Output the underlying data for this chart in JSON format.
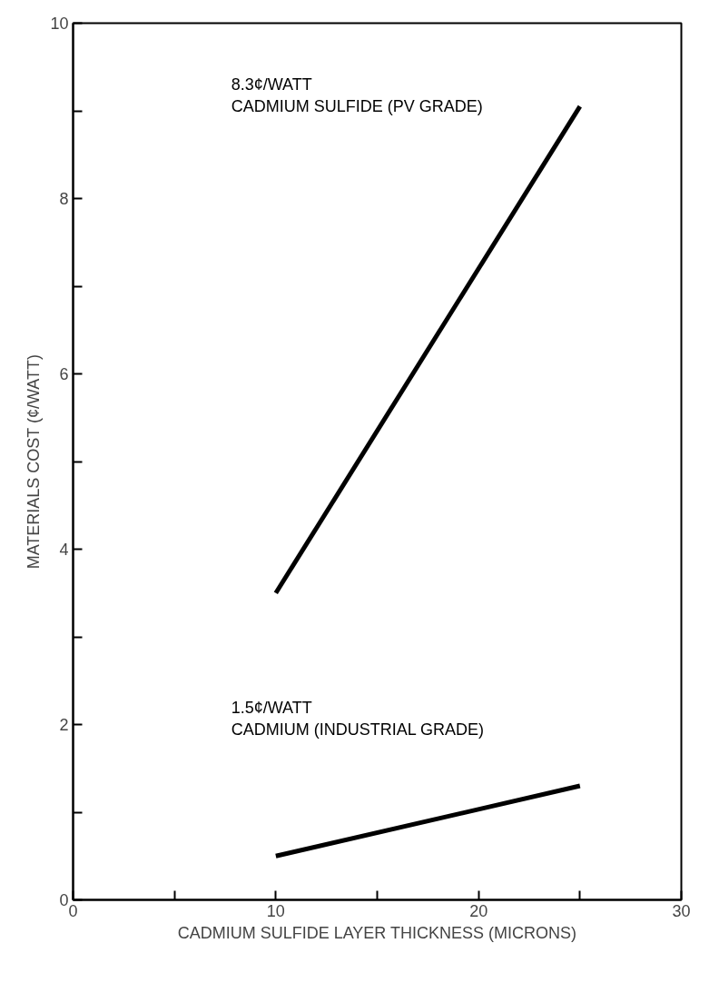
{
  "chart_data": {
    "type": "line",
    "xlabel": "CADMIUM SULFIDE LAYER THICKNESS (MICRONS)",
    "ylabel": "MATERIALS COST (¢/WATT)",
    "xlim": [
      0,
      30
    ],
    "ylim": [
      0,
      10
    ],
    "xticks": [
      0,
      {
        "value": 5,
        "label": null
      },
      10,
      {
        "value": 15,
        "label": null
      },
      20,
      {
        "value": 25,
        "label": null
      },
      30
    ],
    "yticks": [
      0,
      {
        "value": 1,
        "label": null
      },
      2,
      {
        "value": 3,
        "label": null
      },
      4,
      {
        "value": 5,
        "label": null
      },
      6,
      {
        "value": 7,
        "label": null
      },
      8,
      {
        "value": 9,
        "label": null
      },
      10
    ],
    "grid": false,
    "marker": "none",
    "line_style": "solid",
    "x": [
      10,
      25
    ],
    "annotations": [
      "8.3¢/WATT\nCADMIUM SULFIDE (PV GRADE)",
      "1.5¢/WATT\nCADMIUM (INDUSTRIAL GRADE)"
    ],
    "series": [
      {
        "color": "#000000",
        "values": [
          3.5,
          9.05
        ]
      },
      {
        "color": "#000000",
        "values": [
          0.5,
          1.3
        ]
      }
    ]
  }
}
